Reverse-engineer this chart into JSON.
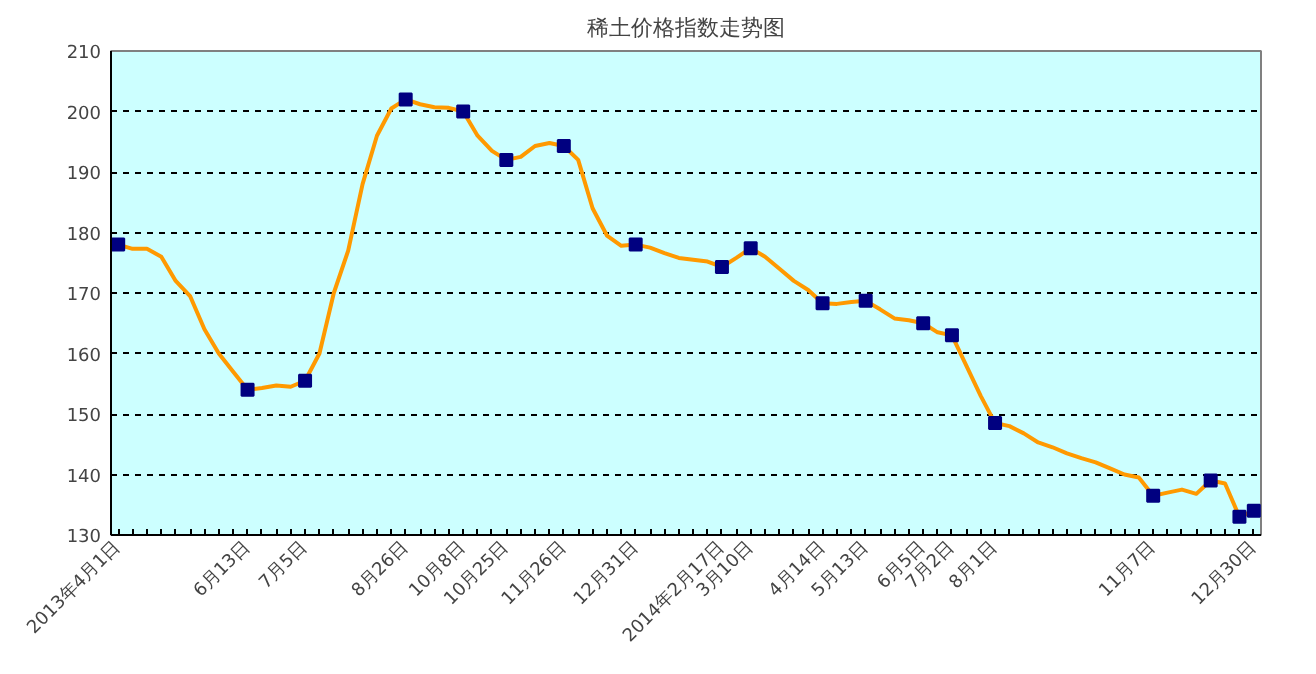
{
  "chart_data": {
    "type": "line",
    "title": "稀土价格指数走势图",
    "categories": [
      "2013年4月1日",
      null,
      null,
      null,
      null,
      null,
      null,
      null,
      null,
      "6月13日",
      null,
      null,
      null,
      "7月5日",
      null,
      null,
      null,
      null,
      null,
      null,
      "8月26日",
      null,
      null,
      null,
      "10月8日",
      null,
      null,
      "10月25日",
      null,
      null,
      null,
      "11月26日",
      null,
      null,
      null,
      null,
      "12月31日",
      null,
      null,
      null,
      null,
      null,
      "2014年2月17日",
      null,
      "3月10日",
      null,
      null,
      null,
      null,
      "4月14日",
      null,
      null,
      "5月13日",
      null,
      null,
      null,
      "6月5日",
      null,
      "7月2日",
      null,
      null,
      "8月1日",
      null,
      null,
      null,
      null,
      null,
      null,
      null,
      null,
      null,
      null,
      "11月7日",
      null,
      null,
      null,
      null,
      null,
      null,
      "12月30日"
    ],
    "series": [
      {
        "color": "#ff9900",
        "values": [
          178,
          177.3,
          177.3,
          176,
          172,
          169.5,
          164,
          160,
          157,
          154,
          154.3,
          154.7,
          154.5,
          155.5,
          160,
          170,
          177,
          188,
          196,
          200.5,
          202,
          201.2,
          200.7,
          200.6,
          200,
          196,
          193.5,
          192,
          192.5,
          194.3,
          194.8,
          194.3,
          192,
          184,
          179.5,
          177.8,
          178,
          177.5,
          176.6,
          175.8,
          175.5,
          175.2,
          174.3,
          175.8,
          177.4,
          176,
          174,
          172,
          170.5,
          168.3,
          168.2,
          168.5,
          168.7,
          167.3,
          165.8,
          165.5,
          165,
          163.5,
          163,
          158,
          153,
          148.5,
          148,
          146.8,
          145.3,
          144.5,
          143.5,
          142.7,
          142,
          141,
          140,
          139.5,
          136.5,
          137,
          137.5,
          136.8,
          139,
          138.5,
          133,
          134
        ]
      },
      {
        "type": "scatter",
        "color": "#000080",
        "marker": "square",
        "values": [
          178,
          null,
          null,
          null,
          null,
          null,
          null,
          null,
          null,
          154,
          null,
          null,
          null,
          155.5,
          null,
          null,
          null,
          null,
          null,
          null,
          202,
          null,
          null,
          null,
          200,
          null,
          null,
          192,
          null,
          null,
          null,
          194.3,
          null,
          null,
          null,
          null,
          178,
          null,
          null,
          null,
          null,
          null,
          174.3,
          null,
          177.4,
          null,
          null,
          null,
          null,
          168.3,
          null,
          null,
          168.7,
          null,
          null,
          null,
          165,
          null,
          163,
          null,
          null,
          148.5,
          null,
          null,
          null,
          null,
          null,
          null,
          null,
          null,
          null,
          null,
          136.5,
          null,
          null,
          null,
          139,
          null,
          133,
          134
        ]
      }
    ],
    "ylim": [
      130,
      210
    ],
    "yticks": [
      130,
      140,
      150,
      160,
      170,
      180,
      190,
      200,
      210
    ],
    "grid": "y"
  }
}
